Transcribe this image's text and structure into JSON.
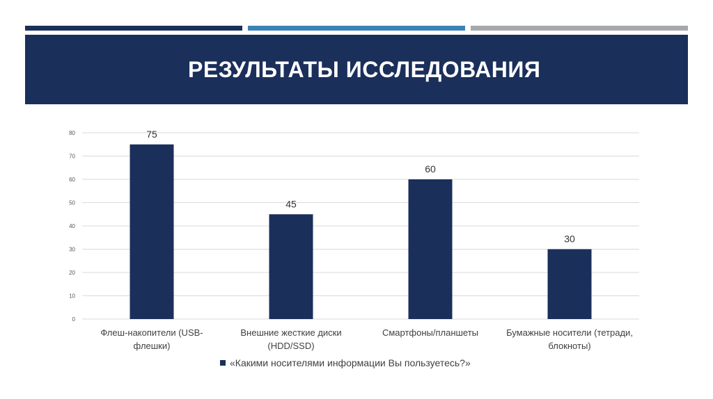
{
  "title": "РЕЗУЛЬТАТЫ ИССЛЕДОВАНИЯ",
  "colors": {
    "stripe_1": "#1b2f5b",
    "stripe_2": "#3b82b8",
    "stripe_3": "#a6a8ab",
    "banner": "#1b2f5b",
    "bar": "#1b2f5b",
    "grid": "#d9d9d9"
  },
  "chart_data": {
    "type": "bar",
    "categories": [
      [
        "Флеш-накопители (USB-",
        "флешки)"
      ],
      [
        "Внешние жесткие диски",
        "(HDD/SSD)"
      ],
      [
        "Смартфоны/планшеты"
      ],
      [
        "Бумажные носители (тетради,",
        "блокноты)"
      ]
    ],
    "series": [
      {
        "name": "«Какими носителями информации Вы пользуетесь?»",
        "values": [
          75,
          45,
          60,
          30
        ]
      }
    ],
    "ylim": [
      0,
      80
    ],
    "yticks": [
      0,
      10,
      20,
      30,
      40,
      50,
      60,
      70,
      80
    ],
    "grid": true,
    "data_labels": true,
    "legend": "bottom"
  }
}
